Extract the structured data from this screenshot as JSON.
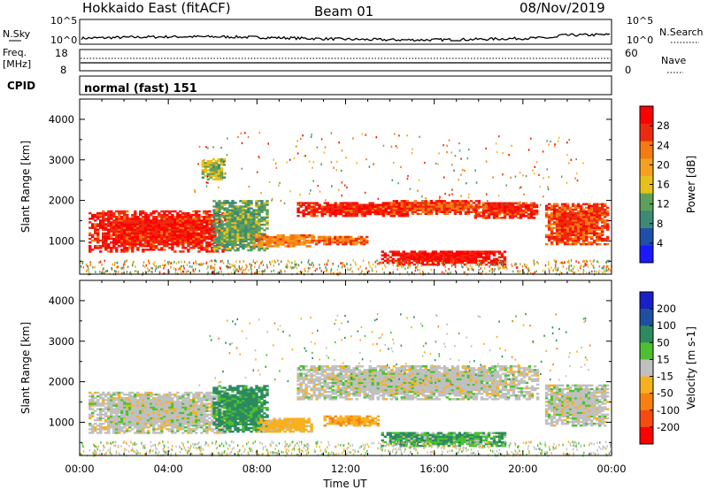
{
  "header": {
    "radar": "Hokkaido East (fitACF)",
    "beam": "Beam 01",
    "date": "08/Nov/2019"
  },
  "noise_panel": {
    "left_label": "N.Sky",
    "left_ticks": [
      "10^5",
      "10^0"
    ],
    "right_ticks": [
      "10^5",
      "10^0"
    ],
    "right_label": "N.Search"
  },
  "freq_panel": {
    "left_label_1": "Freq.",
    "left_label_2": "[MHz]",
    "left_ticks": [
      "18",
      "8"
    ],
    "right_ticks": [
      "60",
      "0"
    ],
    "right_label": "Nave"
  },
  "cpid_panel": {
    "label": "CPID",
    "value": "normal (fast) 151"
  },
  "x_axis": {
    "label": "Time UT",
    "ticks": [
      "00:00",
      "04:00",
      "08:00",
      "12:00",
      "16:00",
      "20:00",
      "00:00"
    ]
  },
  "chart_data": [
    {
      "type": "heatmap",
      "name": "power",
      "ylabel": "Slant Range [km]",
      "ylim": [
        180,
        4500
      ],
      "yticks": [
        "1000",
        "2000",
        "3000",
        "4000"
      ],
      "xlim": [
        0,
        24
      ],
      "colorbar": {
        "label": "Power [dB]",
        "ticks": [
          "4",
          "8",
          "12",
          "16",
          "20",
          "24",
          "28"
        ],
        "colors": [
          "#1a1aff",
          "#1f4fa8",
          "#3c8a76",
          "#5ea05a",
          "#e8c01a",
          "#f5a020",
          "#f47a12",
          "#ee2a0e",
          "#ff0000"
        ]
      },
      "regions": [
        {
          "t0": 0.4,
          "t1": 6.6,
          "r0": 720,
          "r1": 1750,
          "v": 28
        },
        {
          "t0": 6.0,
          "t1": 8.5,
          "r0": 750,
          "r1": 2000,
          "v": 12
        },
        {
          "t0": 7.8,
          "t1": 10.5,
          "r0": 850,
          "r1": 1150,
          "v": 22
        },
        {
          "t0": 9.8,
          "t1": 14.8,
          "r0": 1600,
          "r1": 1950,
          "v": 28
        },
        {
          "t0": 14.0,
          "t1": 18.0,
          "r0": 1650,
          "r1": 2000,
          "v": 26
        },
        {
          "t0": 13.6,
          "t1": 19.2,
          "r0": 400,
          "r1": 750,
          "v": 29
        },
        {
          "t0": 10.5,
          "t1": 13.0,
          "r0": 900,
          "r1": 1100,
          "v": 24
        },
        {
          "t0": 17.8,
          "t1": 20.6,
          "r0": 1550,
          "r1": 1950,
          "v": 27
        },
        {
          "t0": 21.0,
          "t1": 23.8,
          "r0": 900,
          "r1": 1900,
          "v": 26
        },
        {
          "t0": 5.5,
          "t1": 6.5,
          "r0": 2500,
          "r1": 3000,
          "v": 14
        }
      ]
    },
    {
      "type": "heatmap",
      "name": "velocity",
      "ylabel": "Slant Range [km]",
      "ylim": [
        180,
        4500
      ],
      "yticks": [
        "1000",
        "2000",
        "3000",
        "4000"
      ],
      "xlim": [
        0,
        24
      ],
      "colorbar": {
        "label": "Velocity [m s-1]",
        "ticks": [
          "200",
          "100",
          "50",
          "15",
          "-15",
          "-50",
          "-100",
          "-200"
        ],
        "colors": [
          "#1a20c8",
          "#1f4fa0",
          "#2c8a60",
          "#4cc030",
          "#c0c0c0",
          "#f8b020",
          "#f88010",
          "#f84a10",
          "#ff0000"
        ]
      },
      "regions": [
        {
          "t0": 0.4,
          "t1": 6.6,
          "r0": 720,
          "r1": 1750,
          "v": 0
        },
        {
          "t0": 9.8,
          "t1": 20.6,
          "r0": 1550,
          "r1": 2400,
          "v": 0
        },
        {
          "t0": 6.0,
          "t1": 8.5,
          "r0": 750,
          "r1": 1900,
          "v": 40
        },
        {
          "t0": 8.0,
          "t1": 10.5,
          "r0": 750,
          "r1": 1100,
          "v": -30
        },
        {
          "t0": 11.0,
          "t1": 13.5,
          "r0": 900,
          "r1": 1150,
          "v": -40
        },
        {
          "t0": 13.6,
          "t1": 19.2,
          "r0": 400,
          "r1": 750,
          "v": 30
        },
        {
          "t0": 21.0,
          "t1": 23.8,
          "r0": 900,
          "r1": 1900,
          "v": 0
        }
      ]
    }
  ]
}
